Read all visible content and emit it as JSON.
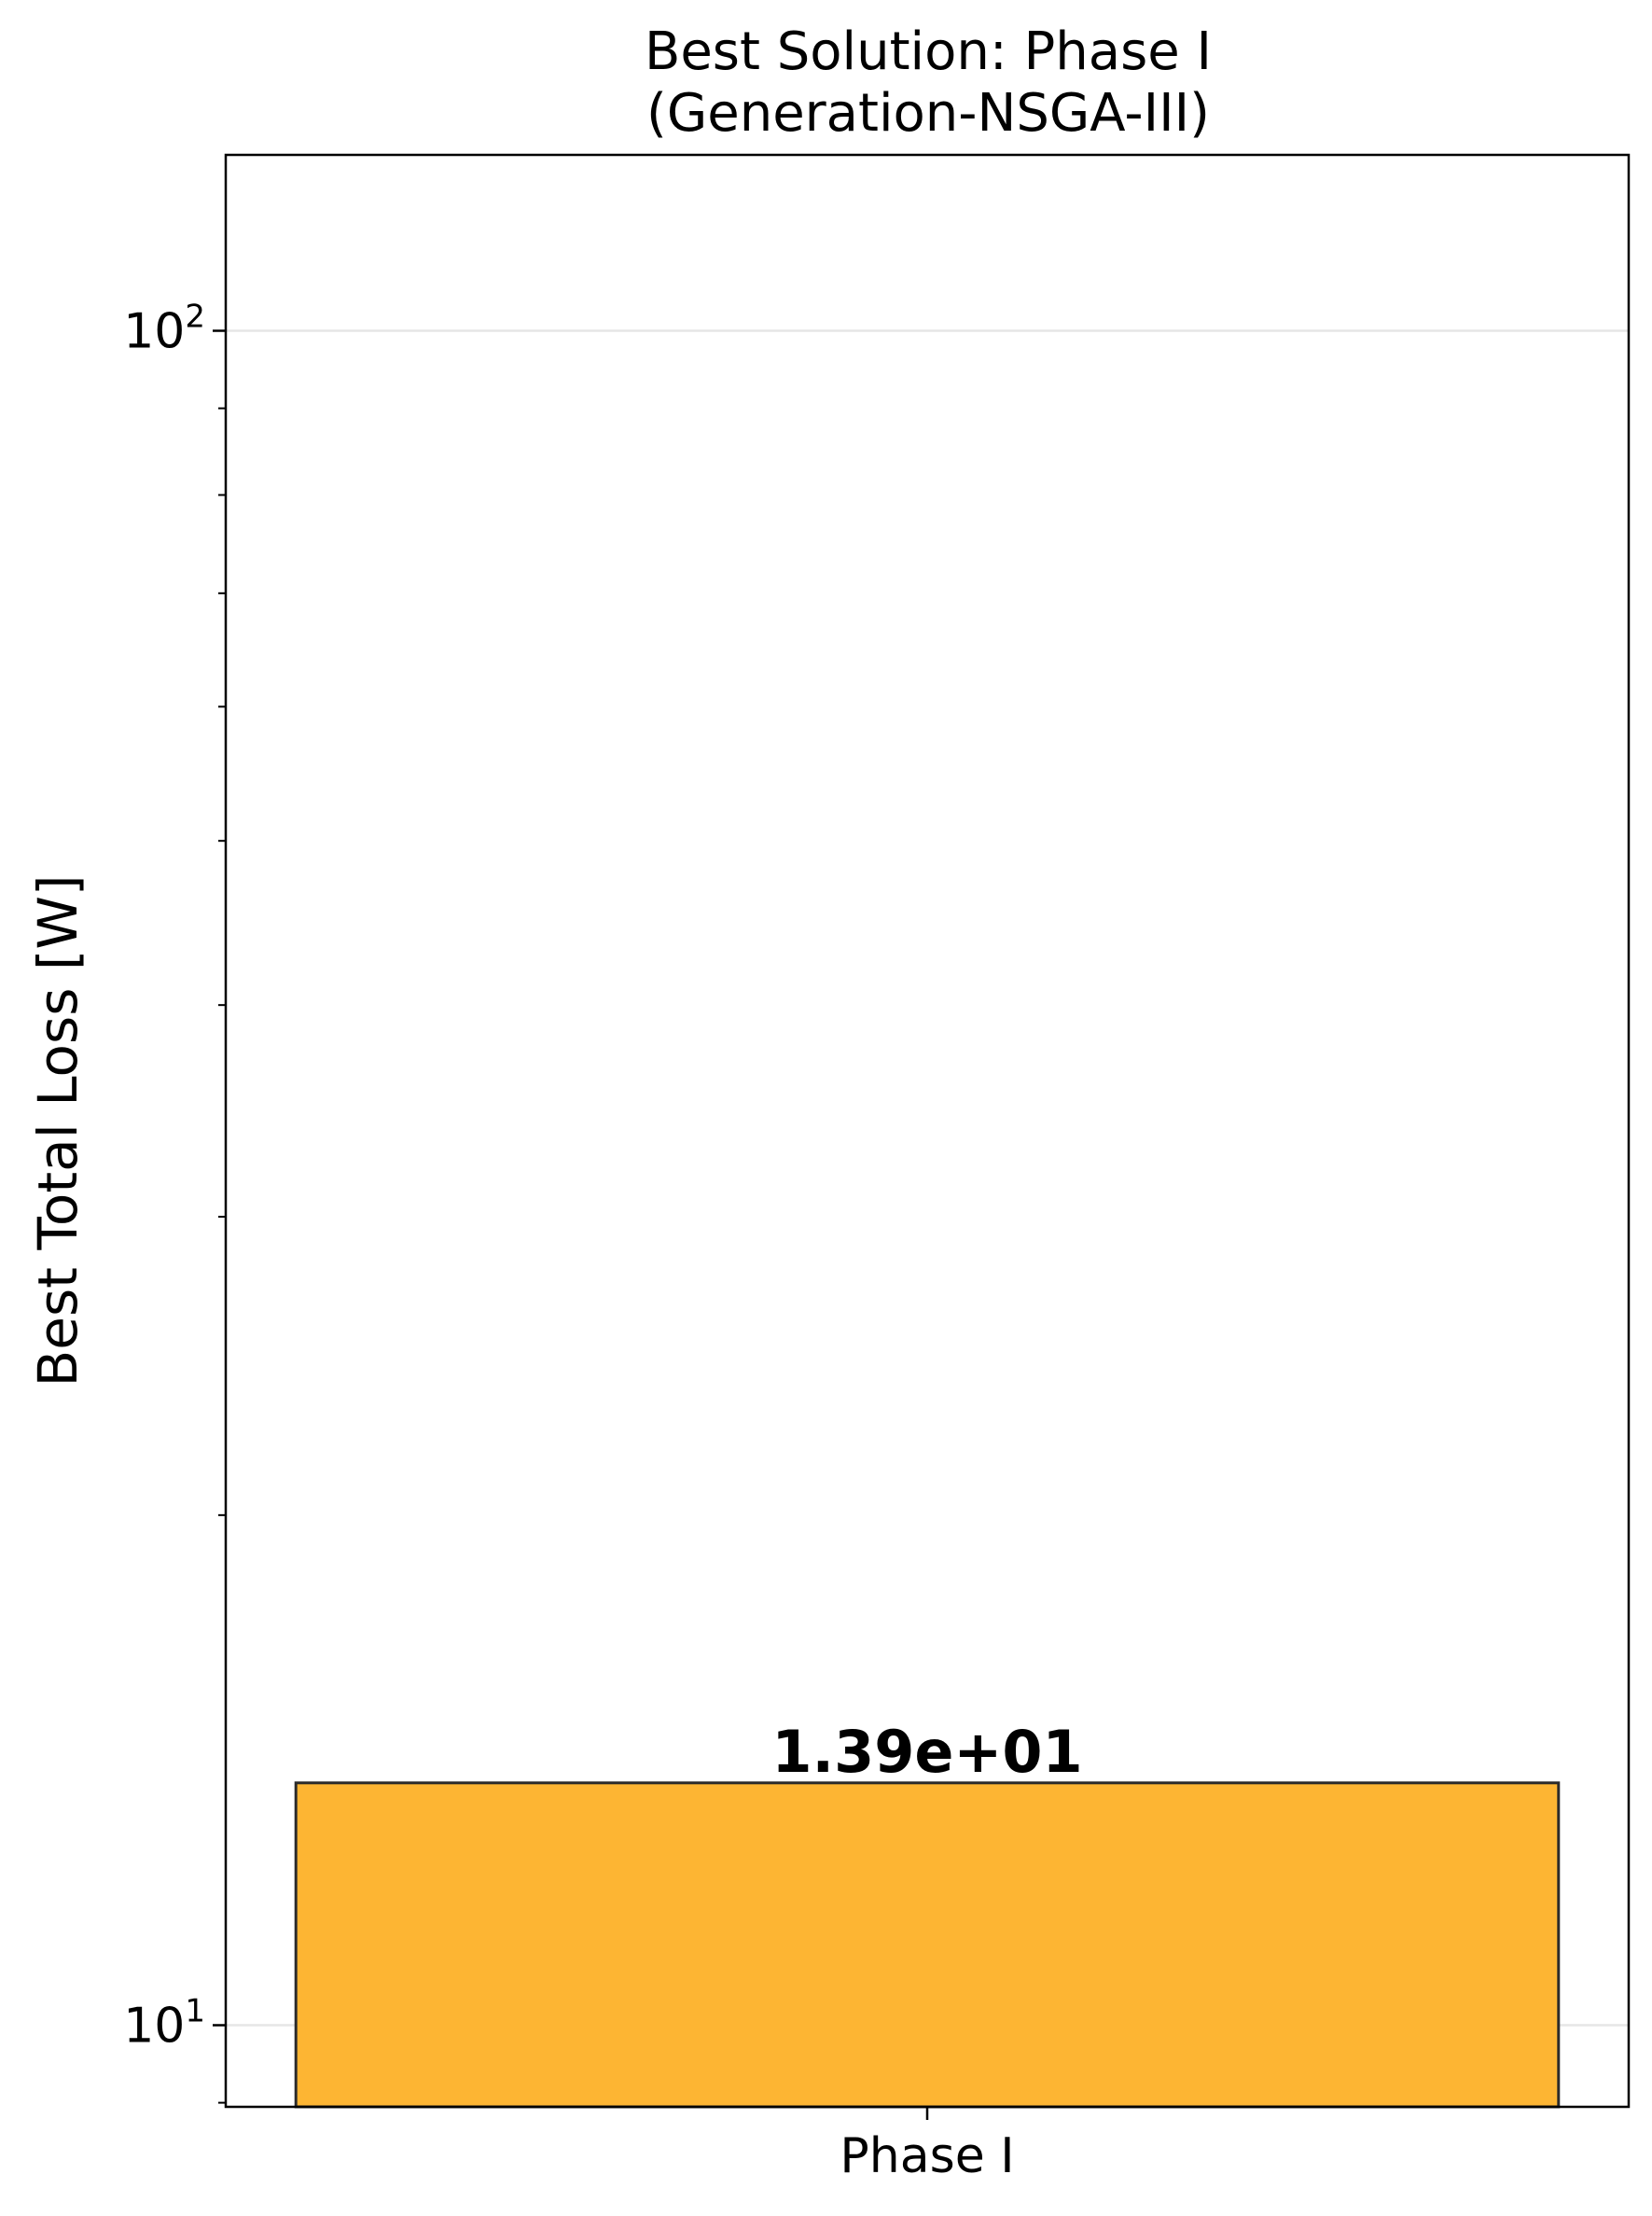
{
  "chart_data": {
    "type": "bar",
    "title": "Best Solution: Phase I",
    "subtitle": "(Generation-NSGA-III)",
    "xlabel": "",
    "ylabel": "Best Total Loss [W]",
    "yscale": "log",
    "ylim": [
      8.95,
      127
    ],
    "categories": [
      "Phase I"
    ],
    "values": [
      13.9
    ],
    "data_labels": [
      "1.39e+01"
    ],
    "y_major_ticks": [
      {
        "value": 10,
        "base": "10",
        "exp": "1"
      },
      {
        "value": 100,
        "base": "10",
        "exp": "2"
      }
    ],
    "y_minor_ticks": [
      9,
      20,
      30,
      40,
      50,
      60,
      70,
      80,
      90
    ],
    "grid": "horizontal major",
    "legend": "none",
    "colors": {
      "bar_fill": "#FDB533",
      "bar_edge": "#2b2b2b",
      "grid": "#e6e6e6",
      "axes": "#000000"
    }
  }
}
